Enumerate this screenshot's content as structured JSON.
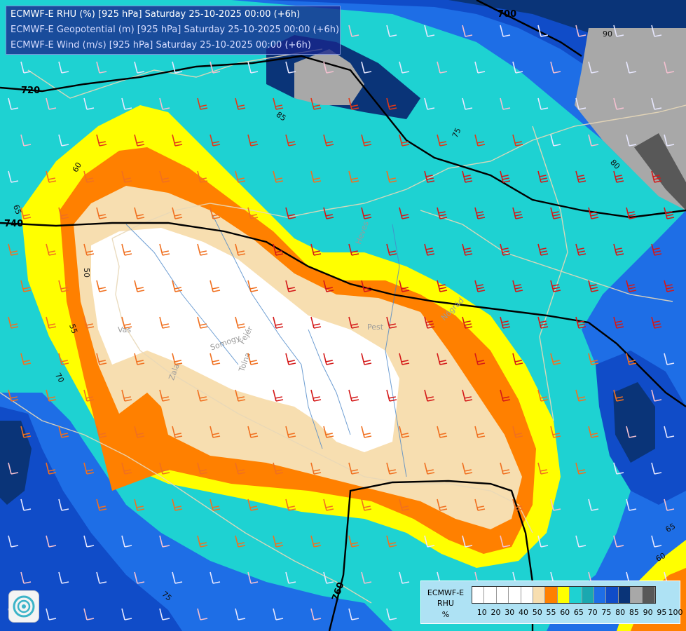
{
  "header": {
    "line1": "ECMWF-E RHU (%) [925 hPa] Saturday 25-10-2025 00:00 (+6h)",
    "line2": "ECMWF-E Geopotential (m) [925 hPa] Saturday 25-10-2025 00:00 (+6h)",
    "line3": "ECMWF-E Wind (m/s) [925 hPa] Saturday 25-10-2025 00:00 (+6h)"
  },
  "legend": {
    "line1": "ECMWF-E",
    "line2": "RHU",
    "line3": "%",
    "colors": [
      "#ffffff",
      "#ffffff",
      "#ffffff",
      "#ffffff",
      "#ffffff",
      "#f7deb0",
      "#ff8000",
      "#ffff00",
      "#1ed2d2",
      "#1aa8b0",
      "#1e6ee6",
      "#104cc8",
      "#0a3478",
      "#a8a8a8",
      "#585858"
    ],
    "ticks": [
      "10",
      "20",
      "30",
      "40",
      "50",
      "55",
      "60",
      "65",
      "70",
      "75",
      "80",
      "85",
      "90",
      "95",
      "100"
    ]
  },
  "contours": {
    "geopotential": [
      "700",
      "720",
      "740",
      "760"
    ],
    "rhu": [
      "50",
      "55",
      "60",
      "65",
      "70",
      "75",
      "80",
      "85",
      "90",
      "60",
      "65",
      "75"
    ]
  },
  "places": [
    "Vas",
    "Somogy",
    "Fejér",
    "Zala",
    "Tolna",
    "Pest",
    "Heves",
    "Nógrád",
    "Pest"
  ]
}
